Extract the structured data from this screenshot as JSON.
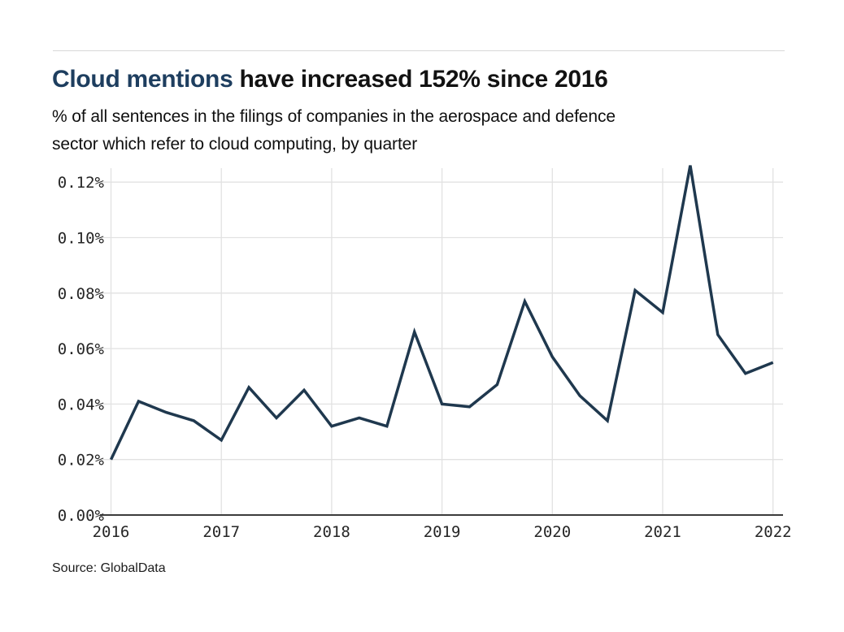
{
  "page": {
    "title_accent": "Cloud mentions",
    "title_rest": "have increased 152% since 2016",
    "subtitle_line1": "% of all sentences in the filings of companies in the aerospace and defence",
    "subtitle_line2": "sector which refer to cloud computing, by quarter",
    "source": "Source: GlobalData"
  },
  "colors": {
    "background": "#ffffff",
    "title_accent": "#1e3e5f",
    "line": "#1f384e",
    "grid": "#e2e2e2",
    "axis": "#3c3c3c",
    "tick_text": "#262626",
    "divider": "#d8d8d8"
  },
  "chart_data": {
    "type": "line",
    "title": "Cloud mentions have increased 152% since 2016",
    "subtitle": "% of all sentences in the filings of companies in the aerospace and defence sector which refer to cloud computing, by quarter",
    "source": "Source: GlobalData",
    "x_unit": "quarter",
    "x_tick_labels": [
      "2016",
      "2017",
      "2018",
      "2019",
      "2020",
      "2021",
      "2022"
    ],
    "y_tick_labels": [
      "0.00%",
      "0.02%",
      "0.04%",
      "0.06%",
      "0.08%",
      "0.10%",
      "0.12%"
    ],
    "ylim": [
      0,
      0.13
    ],
    "y_step": 0.02,
    "grid": true,
    "legend": false,
    "categories": [
      "2016 Q1",
      "2016 Q2",
      "2016 Q3",
      "2016 Q4",
      "2017 Q1",
      "2017 Q2",
      "2017 Q3",
      "2017 Q4",
      "2018 Q1",
      "2018 Q2",
      "2018 Q3",
      "2018 Q4",
      "2019 Q1",
      "2019 Q2",
      "2019 Q3",
      "2019 Q4",
      "2020 Q1",
      "2020 Q2",
      "2020 Q3",
      "2020 Q4",
      "2021 Q1",
      "2021 Q2",
      "2021 Q3",
      "2021 Q4",
      "2022 Q1"
    ],
    "series": [
      {
        "name": "% of sentences referring to cloud computing",
        "values": [
          0.02,
          0.041,
          0.037,
          0.034,
          0.027,
          0.046,
          0.035,
          0.045,
          0.032,
          0.035,
          0.032,
          0.066,
          0.04,
          0.039,
          0.047,
          0.077,
          0.057,
          0.043,
          0.034,
          0.081,
          0.073,
          0.126,
          0.065,
          0.051,
          0.055
        ]
      }
    ]
  }
}
